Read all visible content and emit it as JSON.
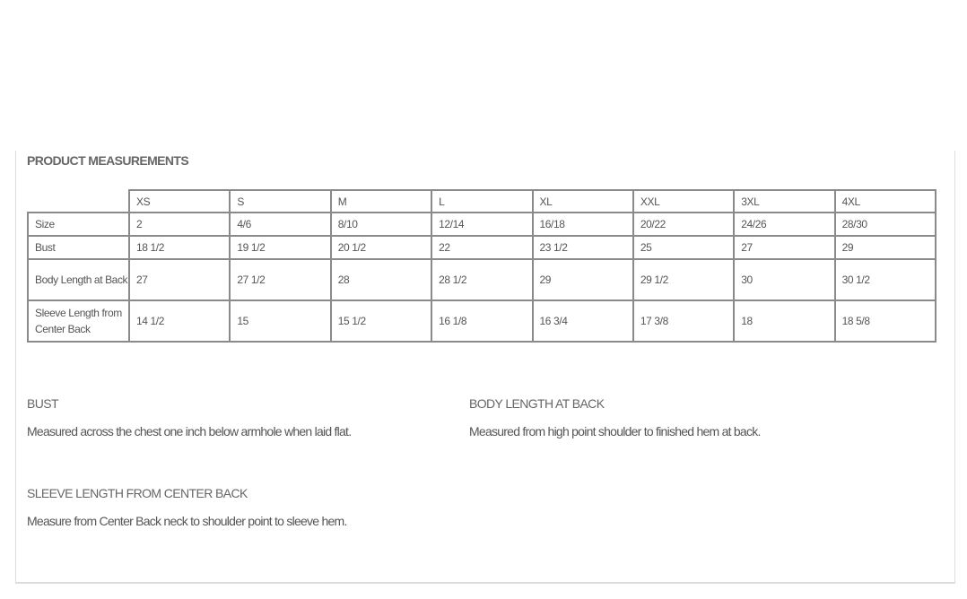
{
  "title": "PRODUCT MEASUREMENTS",
  "table": {
    "columns": [
      "XS",
      "S",
      "M",
      "L",
      "XL",
      "XXL",
      "3XL",
      "4XL"
    ],
    "rows": [
      {
        "label": "Size",
        "values": [
          "2",
          "4/6",
          "8/10",
          "12/14",
          "16/18",
          "20/22",
          "24/26",
          "28/30"
        ]
      },
      {
        "label": "Bust",
        "values": [
          "18 1/2",
          "19 1/2",
          "20 1/2",
          "22",
          "23 1/2",
          "25",
          "27",
          "29"
        ]
      },
      {
        "label": "Body Length at Back",
        "values": [
          "27",
          "27 1/2",
          "28",
          "28 1/2",
          "29",
          "29 1/2",
          "30",
          "30 1/2"
        ]
      },
      {
        "label": "Sleeve Length from Center Back",
        "values": [
          "14 1/2",
          "15",
          "15 1/2",
          "16 1/8",
          "16 3/4",
          "17 3/8",
          "18",
          "18 5/8"
        ]
      }
    ]
  },
  "definitions": [
    {
      "heading": "BUST",
      "text": "Measured across the chest one inch below armhole when laid flat."
    },
    {
      "heading": "BODY LENGTH AT BACK",
      "text": "Measured from high point shoulder to finished hem at back."
    },
    {
      "heading": "SLEEVE LENGTH FROM CENTER BACK",
      "text": "Measure from Center Back neck to shoulder point to sleeve hem."
    }
  ]
}
